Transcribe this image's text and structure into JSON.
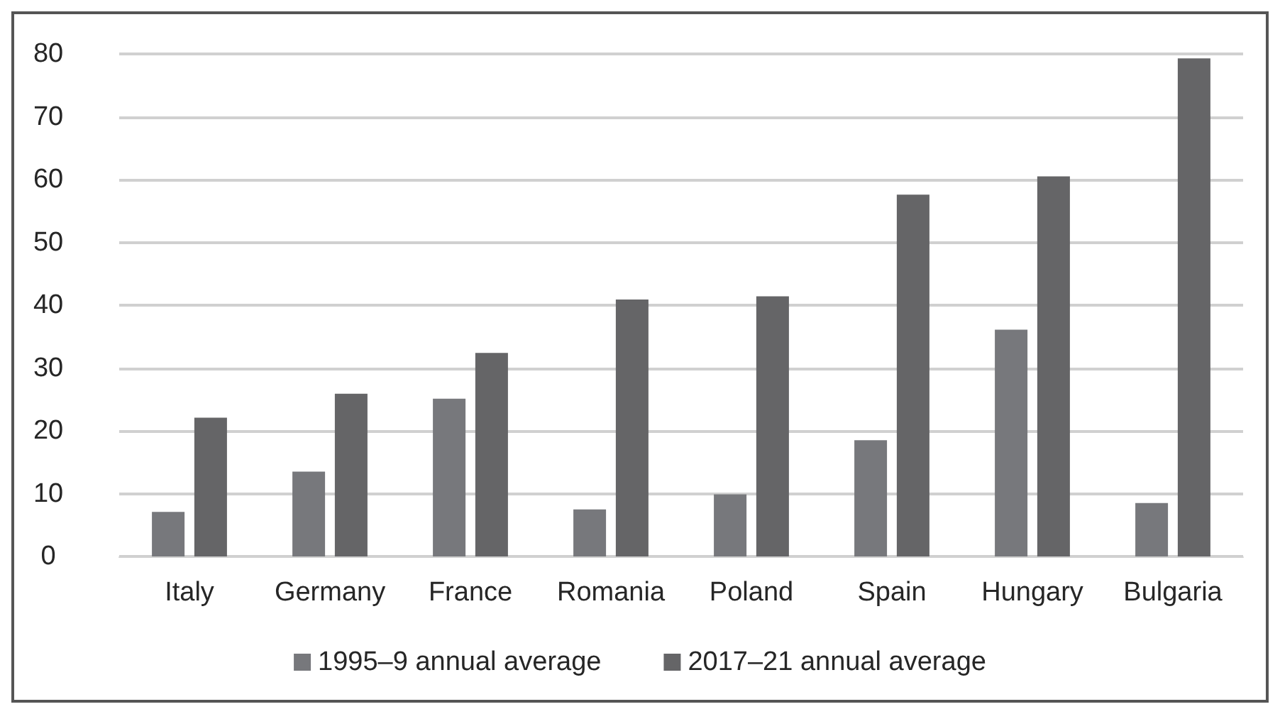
{
  "chart_data": {
    "type": "bar",
    "categories": [
      "Italy",
      "Germany",
      "France",
      "Romania",
      "Poland",
      "Spain",
      "Hungary",
      "Bulgaria"
    ],
    "series": [
      {
        "name": "1995–9 annual average",
        "color": "#77787c",
        "values": [
          7.1,
          13.5,
          25.1,
          7.5,
          9.9,
          18.5,
          36.1,
          8.5
        ]
      },
      {
        "name": "2017–21 annual average",
        "color": "#656567",
        "values": [
          22.1,
          25.9,
          32.4,
          40.9,
          41.4,
          57.6,
          60.5,
          79.3
        ]
      }
    ],
    "ylim": [
      0,
      80
    ],
    "yticks": [
      0,
      10,
      20,
      30,
      40,
      50,
      60,
      70,
      80
    ],
    "grid": "y",
    "legend": "bottom"
  }
}
